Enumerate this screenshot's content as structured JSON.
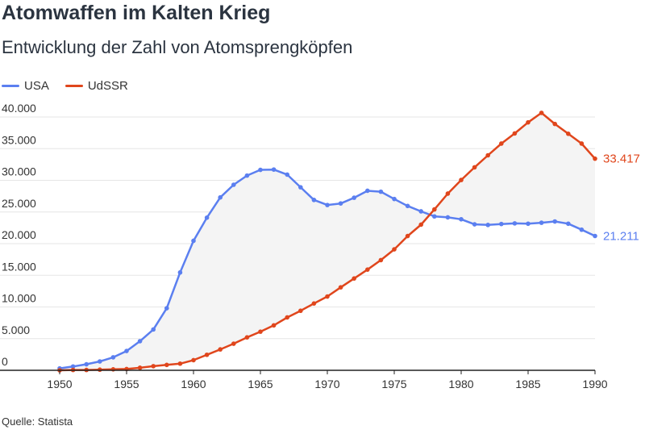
{
  "title": "Atomwaffen im Kalten Krieg",
  "subtitle": "Entwicklung der Zahl von Atomsprengköpfen",
  "source": "Quelle: Statista",
  "colors": {
    "usa": "#5b7ff0",
    "udssr": "#e0461c",
    "fill": "#f4f4f4",
    "grid": "#e6e6e6"
  },
  "chart_data": {
    "type": "line",
    "x": [
      1950,
      1951,
      1952,
      1953,
      1954,
      1955,
      1956,
      1957,
      1958,
      1959,
      1960,
      1961,
      1962,
      1963,
      1964,
      1965,
      1966,
      1967,
      1968,
      1969,
      1970,
      1971,
      1972,
      1973,
      1974,
      1975,
      1976,
      1977,
      1978,
      1979,
      1980,
      1981,
      1982,
      1983,
      1984,
      1985,
      1986,
      1987,
      1988,
      1989,
      1990
    ],
    "series": [
      {
        "name": "USA",
        "color": "#5b7ff0",
        "values": [
          300,
          600,
          950,
          1400,
          2050,
          3050,
          4600,
          6450,
          9800,
          15450,
          20450,
          24100,
          27300,
          29300,
          30750,
          31650,
          31700,
          30900,
          28900,
          26900,
          26100,
          26350,
          27250,
          28350,
          28200,
          27050,
          25950,
          25100,
          24300,
          24150,
          23850,
          23050,
          22950,
          23100,
          23200,
          23150,
          23300,
          23500,
          23150,
          22200,
          21211
        ]
      },
      {
        "name": "UdSSR",
        "color": "#e0461c",
        "values": [
          0,
          50,
          50,
          100,
          150,
          200,
          400,
          650,
          850,
          1050,
          1600,
          2450,
          3300,
          4200,
          5200,
          6100,
          7100,
          8350,
          9400,
          10550,
          11650,
          13100,
          14500,
          15900,
          17400,
          19100,
          21200,
          23000,
          25400,
          27900,
          30050,
          32050,
          33950,
          35800,
          37400,
          39150,
          40650,
          38900,
          37350,
          35800,
          33417
        ]
      }
    ],
    "end_labels": [
      "21.211",
      "33.417"
    ],
    "ylim": [
      0,
      40000
    ],
    "yticks": [
      0,
      5000,
      10000,
      15000,
      20000,
      25000,
      30000,
      35000,
      40000
    ],
    "ytick_labels": [
      "0",
      "5.000",
      "10.000",
      "15.000",
      "20.000",
      "25.000",
      "30.000",
      "35.000",
      "40.000"
    ],
    "xticks": [
      1950,
      1955,
      1960,
      1965,
      1970,
      1975,
      1980,
      1985,
      1990
    ],
    "xtick_labels": [
      "1950",
      "1955",
      "1960",
      "1965",
      "1970",
      "1975",
      "1980",
      "1985",
      "1990"
    ],
    "grid": true,
    "legend_position": "top-left"
  }
}
